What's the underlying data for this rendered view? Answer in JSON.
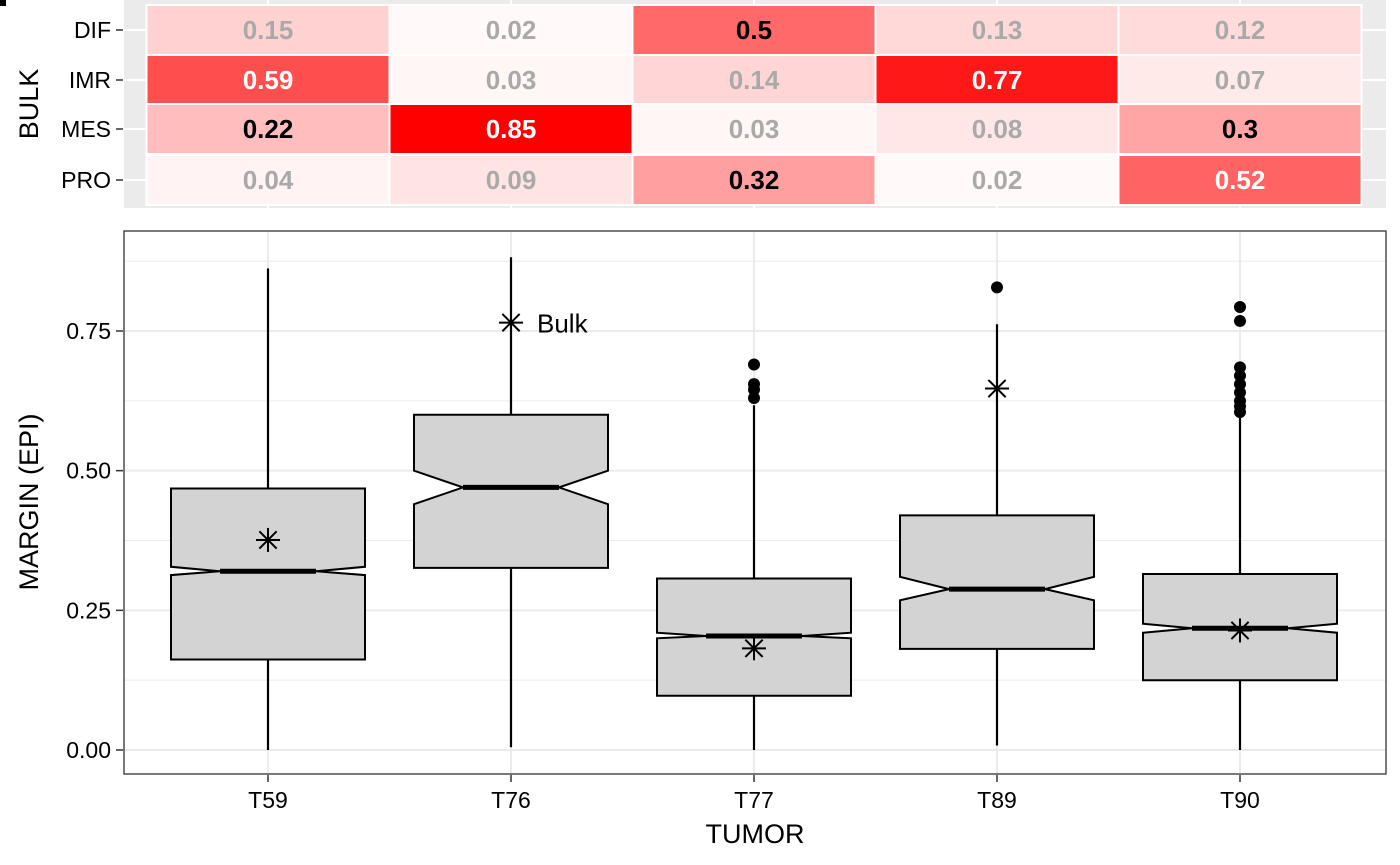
{
  "chart_data": [
    {
      "type": "heatmap",
      "ylabel": "BULK",
      "xlabel": "",
      "rows": [
        "DIF",
        "IMR",
        "MES",
        "PRO"
      ],
      "columns": [
        "T59",
        "T76",
        "T77",
        "T89",
        "T90"
      ],
      "values": [
        [
          0.15,
          0.02,
          0.5,
          0.13,
          0.12
        ],
        [
          0.59,
          0.03,
          0.14,
          0.77,
          0.07
        ],
        [
          0.22,
          0.85,
          0.03,
          0.08,
          0.3
        ],
        [
          0.04,
          0.09,
          0.32,
          0.02,
          0.52
        ]
      ],
      "labels": [
        [
          "0.15",
          "0.02",
          "0.5",
          "0.13",
          "0.12"
        ],
        [
          "0.59",
          "0.03",
          "0.14",
          "0.77",
          "0.07"
        ],
        [
          "0.22",
          "0.85",
          "0.03",
          "0.08",
          "0.3"
        ],
        [
          "0.04",
          "0.09",
          "0.32",
          "0.02",
          "0.52"
        ]
      ],
      "color_low": "#ffffff",
      "color_high": "#ff0000",
      "label_colors": {
        "dim": "#a9a9a9",
        "dark": "#000000",
        "light": "#ffffff"
      }
    },
    {
      "type": "boxplot",
      "notched": true,
      "xlabel": "TUMOR",
      "ylabel": "MARGIN (EPI)",
      "categories": [
        "T59",
        "T76",
        "T77",
        "T89",
        "T90"
      ],
      "ylim": [
        -0.01,
        0.88
      ],
      "yticks": [
        0.0,
        0.25,
        0.5,
        0.75
      ],
      "ytick_labels": [
        "0.00",
        "0.25",
        "0.50",
        "0.75"
      ],
      "grid": true,
      "box_fill": "#d3d3d3",
      "boxes": [
        {
          "q1": 0.162,
          "median": 0.32,
          "q3": 0.468,
          "notch_low": 0.313,
          "notch_high": 0.328,
          "whisker_low": 0.0,
          "whisker_high": 0.862,
          "outliers": [],
          "bulk": 0.376
        },
        {
          "q1": 0.326,
          "median": 0.47,
          "q3": 0.6,
          "notch_low": 0.44,
          "notch_high": 0.5,
          "whisker_low": 0.005,
          "whisker_high": 0.882,
          "outliers": [],
          "bulk": 0.765
        },
        {
          "q1": 0.097,
          "median": 0.204,
          "q3": 0.307,
          "notch_low": 0.2,
          "notch_high": 0.21,
          "whisker_low": 0.0,
          "whisker_high": 0.617,
          "outliers": [
            0.63,
            0.645,
            0.655,
            0.69
          ],
          "bulk": 0.182
        },
        {
          "q1": 0.181,
          "median": 0.288,
          "q3": 0.42,
          "notch_low": 0.268,
          "notch_high": 0.31,
          "whisker_low": 0.008,
          "whisker_high": 0.762,
          "outliers": [
            0.828
          ],
          "bulk": 0.647
        },
        {
          "q1": 0.125,
          "median": 0.218,
          "q3": 0.315,
          "notch_low": 0.21,
          "notch_high": 0.226,
          "whisker_low": 0.0,
          "whisker_high": 0.6,
          "outliers": [
            0.605,
            0.615,
            0.625,
            0.64,
            0.655,
            0.67,
            0.685,
            0.768,
            0.793
          ],
          "bulk": 0.214
        }
      ],
      "annotation": {
        "text": "Bulk",
        "category": "T76"
      }
    }
  ]
}
